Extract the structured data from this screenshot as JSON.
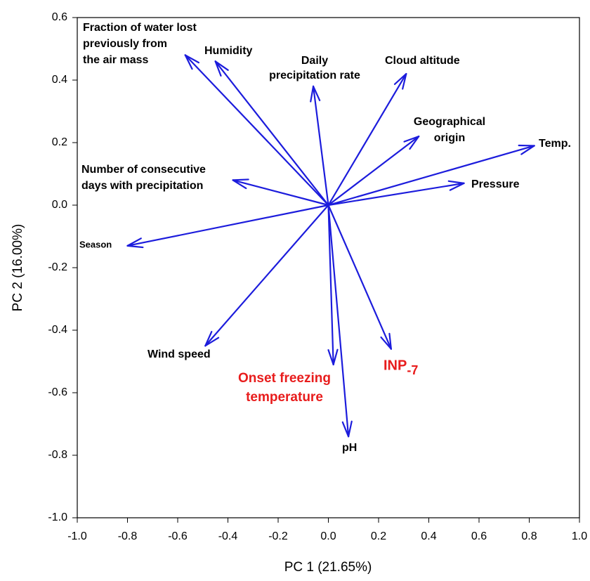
{
  "chart_data": {
    "type": "biplot",
    "x_label": "PC 1 (21.65%)",
    "y_label": "PC 2 (16.00%)",
    "xlim": [
      -1.0,
      1.0
    ],
    "ylim": [
      -1.0,
      0.6
    ],
    "xticks": [
      {
        "value": -1.0,
        "label": "-1.0"
      },
      -0.8,
      -0.6,
      -0.4,
      -0.2,
      {
        "value": 0,
        "label": "0.0"
      },
      0.2,
      0.4,
      0.6,
      0.8,
      {
        "value": 1.0,
        "label": "1.0"
      }
    ],
    "yticks": [
      {
        "value": -1.0,
        "label": "-1.0"
      },
      -0.8,
      -0.6,
      -0.4,
      -0.2,
      {
        "value": 0,
        "label": "0.0"
      },
      0.2,
      0.4,
      0.6
    ],
    "arrow_color": "#1c1cdc",
    "series": [
      {
        "name": [
          "Fraction of water lost",
          "previously from",
          "the air mass"
        ],
        "x": -0.57,
        "y": 0.48,
        "color": "#000000"
      },
      {
        "name": [
          "Humidity"
        ],
        "x": -0.45,
        "y": 0.46,
        "color": "#000000"
      },
      {
        "name": [
          "Daily",
          "precipitation rate"
        ],
        "x": -0.06,
        "y": 0.38,
        "color": "#000000"
      },
      {
        "name": [
          "Cloud altitude"
        ],
        "x": 0.31,
        "y": 0.42,
        "color": "#000000"
      },
      {
        "name": [
          "Geographical",
          "origin"
        ],
        "x": 0.36,
        "y": 0.22,
        "color": "#000000"
      },
      {
        "name": [
          "Temp."
        ],
        "x": 0.82,
        "y": 0.19,
        "color": "#000000"
      },
      {
        "name": [
          "Pressure"
        ],
        "x": 0.54,
        "y": 0.07,
        "color": "#000000"
      },
      {
        "name": [
          "Number of consecutive",
          "days with precipitation"
        ],
        "x": -0.38,
        "y": 0.08,
        "color": "#000000"
      },
      {
        "name": [
          "Season"
        ],
        "x": -0.8,
        "y": -0.13,
        "color": "#000000"
      },
      {
        "name": [
          "Wind speed"
        ],
        "x": -0.49,
        "y": -0.45,
        "color": "#000000"
      },
      {
        "name": [
          "Onset freezing",
          "temperature"
        ],
        "x": 0.02,
        "y": -0.51,
        "color": "#e81c1c"
      },
      {
        "name": [
          "pH"
        ],
        "x": 0.08,
        "y": -0.74,
        "color": "#000000"
      },
      {
        "name": [
          "INP"
        ],
        "subscript": "-7",
        "x": 0.25,
        "y": -0.46,
        "color": "#e81c1c"
      }
    ]
  }
}
